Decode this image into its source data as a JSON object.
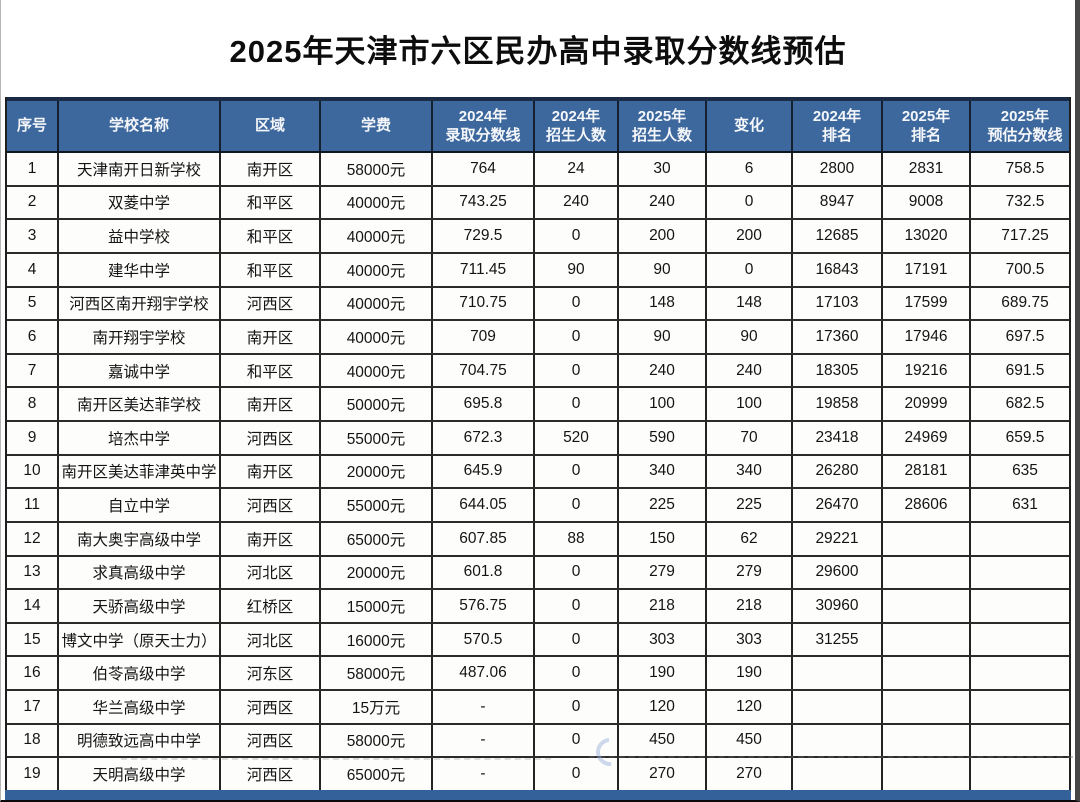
{
  "title": "2025年天津市六区民办高中录取分数线预估",
  "colors": {
    "header_bg": "#3d689e",
    "header_top_border": "#1b2b45",
    "bottom_bar": "#35619b",
    "body_bg": "#fdfdfc",
    "grid_line": "#232323",
    "header_text": "#f4f6f9",
    "body_text": "#141414"
  },
  "table": {
    "columns": [
      {
        "key": "no",
        "label": "序号"
      },
      {
        "key": "school",
        "label": "学校名称"
      },
      {
        "key": "district",
        "label": "区域"
      },
      {
        "key": "tuition",
        "label": "学费"
      },
      {
        "key": "score2024",
        "label": "2024年\n录取分数线"
      },
      {
        "key": "enroll2024",
        "label": "2024年\n招生人数"
      },
      {
        "key": "enroll2025",
        "label": "2025年\n招生人数"
      },
      {
        "key": "change",
        "label": "变化"
      },
      {
        "key": "rank2024",
        "label": "2024年\n排名"
      },
      {
        "key": "rank2025",
        "label": "2025年\n排名"
      },
      {
        "key": "score2025",
        "label": "2025年\n预估分数线"
      }
    ],
    "rows": [
      [
        "1",
        "天津南开日新学校",
        "南开区",
        "58000元",
        "764",
        "24",
        "30",
        "6",
        "2800",
        "2831",
        "758.5"
      ],
      [
        "2",
        "双菱中学",
        "和平区",
        "40000元",
        "743.25",
        "240",
        "240",
        "0",
        "8947",
        "9008",
        "732.5"
      ],
      [
        "3",
        "益中学校",
        "和平区",
        "40000元",
        "729.5",
        "0",
        "200",
        "200",
        "12685",
        "13020",
        "717.25"
      ],
      [
        "4",
        "建华中学",
        "和平区",
        "40000元",
        "711.45",
        "90",
        "90",
        "0",
        "16843",
        "17191",
        "700.5"
      ],
      [
        "5",
        "河西区南开翔宇学校",
        "河西区",
        "40000元",
        "710.75",
        "0",
        "148",
        "148",
        "17103",
        "17599",
        "689.75"
      ],
      [
        "6",
        "南开翔宇学校",
        "南开区",
        "40000元",
        "709",
        "0",
        "90",
        "90",
        "17360",
        "17946",
        "697.5"
      ],
      [
        "7",
        "嘉诚中学",
        "和平区",
        "40000元",
        "704.75",
        "0",
        "240",
        "240",
        "18305",
        "19216",
        "691.5"
      ],
      [
        "8",
        "南开区美达菲学校",
        "南开区",
        "50000元",
        "695.8",
        "0",
        "100",
        "100",
        "19858",
        "20999",
        "682.5"
      ],
      [
        "9",
        "培杰中学",
        "河西区",
        "55000元",
        "672.3",
        "520",
        "590",
        "70",
        "23418",
        "24969",
        "659.5"
      ],
      [
        "10",
        "南开区美达菲津英中学",
        "南开区",
        "20000元",
        "645.9",
        "0",
        "340",
        "340",
        "26280",
        "28181",
        "635"
      ],
      [
        "11",
        "自立中学",
        "河西区",
        "55000元",
        "644.05",
        "0",
        "225",
        "225",
        "26470",
        "28606",
        "631"
      ],
      [
        "12",
        "南大奥宇高级中学",
        "南开区",
        "65000元",
        "607.85",
        "88",
        "150",
        "62",
        "29221",
        "",
        ""
      ],
      [
        "13",
        "求真高级中学",
        "河北区",
        "20000元",
        "601.8",
        "0",
        "279",
        "279",
        "29600",
        "",
        ""
      ],
      [
        "14",
        "天骄高级中学",
        "红桥区",
        "15000元",
        "576.75",
        "0",
        "218",
        "218",
        "30960",
        "",
        ""
      ],
      [
        "15",
        "博文中学（原天士力）",
        "河北区",
        "16000元",
        "570.5",
        "0",
        "303",
        "303",
        "31255",
        "",
        ""
      ],
      [
        "16",
        "伯苓高级中学",
        "河东区",
        "58000元",
        "487.06",
        "0",
        "190",
        "190",
        "",
        "",
        ""
      ],
      [
        "17",
        "华兰高级中学",
        "河西区",
        "15万元",
        "-",
        "0",
        "120",
        "120",
        "",
        "",
        ""
      ],
      [
        "18",
        "明德致远高中中学",
        "河西区",
        "58000元",
        "-",
        "0",
        "450",
        "450",
        "",
        "",
        ""
      ],
      [
        "19",
        "天明高级中学",
        "河西区",
        "65000元",
        "-",
        "0",
        "270",
        "270",
        "",
        "",
        ""
      ]
    ]
  }
}
